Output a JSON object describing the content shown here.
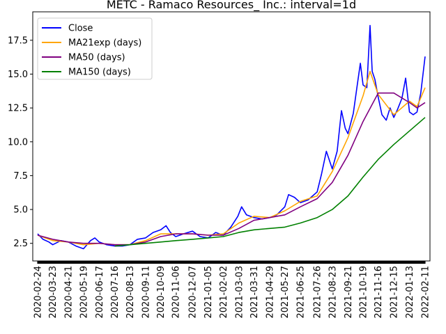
{
  "chart_data": {
    "type": "line",
    "title": "METC - Ramaco Resources_ Inc.: interval=1d",
    "xlabel": "",
    "ylabel": "",
    "ylim": [
      1.2,
      19.6
    ],
    "xlim": [
      "2020-02-15",
      "2022-02-20"
    ],
    "grid": false,
    "legend_position": "top-left",
    "x_tick_labels": [
      "2020-02-24",
      "2020-03-23",
      "2020-04-21",
      "2020-05-19",
      "2020-06-17",
      "2020-07-16",
      "2020-08-13",
      "2020-09-11",
      "2020-10-09",
      "2020-11-06",
      "2020-12-07",
      "2021-01-05",
      "2021-02-02",
      "2021-03-03",
      "2021-03-31",
      "2021-04-29",
      "2021-05-27",
      "2021-06-25",
      "2021-07-26",
      "2021-08-23",
      "2021-09-21",
      "2021-10-19",
      "2021-11-16",
      "2021-12-15",
      "2022-01-13",
      "2022-02-11"
    ],
    "y_ticks": [
      2.5,
      5.0,
      7.5,
      10.0,
      12.5,
      15.0,
      17.5
    ],
    "y_tick_labels": [
      "2.5",
      "5.0",
      "7.5",
      "10.0",
      "12.5",
      "15.0",
      "17.5"
    ],
    "series": [
      {
        "name": "Close",
        "color": "#0000ff",
        "points": [
          [
            "2020-02-24",
            3.2
          ],
          [
            "2020-03-05",
            2.8
          ],
          [
            "2020-03-16",
            2.6
          ],
          [
            "2020-03-23",
            2.4
          ],
          [
            "2020-04-07",
            2.7
          ],
          [
            "2020-04-21",
            2.6
          ],
          [
            "2020-05-05",
            2.3
          ],
          [
            "2020-05-19",
            2.1
          ],
          [
            "2020-06-01",
            2.7
          ],
          [
            "2020-06-09",
            2.9
          ],
          [
            "2020-06-17",
            2.6
          ],
          [
            "2020-07-01",
            2.4
          ],
          [
            "2020-07-16",
            2.3
          ],
          [
            "2020-07-30",
            2.3
          ],
          [
            "2020-08-13",
            2.4
          ],
          [
            "2020-08-27",
            2.8
          ],
          [
            "2020-09-11",
            2.9
          ],
          [
            "2020-09-25",
            3.3
          ],
          [
            "2020-10-09",
            3.5
          ],
          [
            "2020-10-19",
            3.8
          ],
          [
            "2020-10-27",
            3.3
          ],
          [
            "2020-11-06",
            3.0
          ],
          [
            "2020-11-20",
            3.2
          ],
          [
            "2020-12-07",
            3.4
          ],
          [
            "2020-12-21",
            3.0
          ],
          [
            "2021-01-05",
            2.9
          ],
          [
            "2021-01-19",
            3.3
          ],
          [
            "2021-02-02",
            3.1
          ],
          [
            "2021-02-16",
            3.7
          ],
          [
            "2021-03-01",
            4.5
          ],
          [
            "2021-03-08",
            5.2
          ],
          [
            "2021-03-17",
            4.6
          ],
          [
            "2021-03-31",
            4.4
          ],
          [
            "2021-04-15",
            4.3
          ],
          [
            "2021-04-29",
            4.4
          ],
          [
            "2021-05-12",
            4.6
          ],
          [
            "2021-05-27",
            5.2
          ],
          [
            "2021-06-03",
            6.1
          ],
          [
            "2021-06-14",
            5.9
          ],
          [
            "2021-06-25",
            5.5
          ],
          [
            "2021-07-09",
            5.7
          ],
          [
            "2021-07-26",
            6.3
          ],
          [
            "2021-08-03",
            7.6
          ],
          [
            "2021-08-12",
            9.3
          ],
          [
            "2021-08-23",
            8.0
          ],
          [
            "2021-09-01",
            9.3
          ],
          [
            "2021-09-09",
            12.3
          ],
          [
            "2021-09-16",
            11.0
          ],
          [
            "2021-09-21",
            10.6
          ],
          [
            "2021-10-01",
            12.1
          ],
          [
            "2021-10-08",
            14.1
          ],
          [
            "2021-10-14",
            15.8
          ],
          [
            "2021-10-19",
            14.2
          ],
          [
            "2021-10-26",
            14.0
          ],
          [
            "2021-11-01",
            18.6
          ],
          [
            "2021-11-05",
            15.2
          ],
          [
            "2021-11-10",
            14.6
          ],
          [
            "2021-11-16",
            13.3
          ],
          [
            "2021-11-23",
            12.0
          ],
          [
            "2021-12-01",
            11.6
          ],
          [
            "2021-12-08",
            12.5
          ],
          [
            "2021-12-15",
            11.8
          ],
          [
            "2021-12-22",
            12.4
          ],
          [
            "2021-12-30",
            13.2
          ],
          [
            "2022-01-06",
            14.7
          ],
          [
            "2022-01-13",
            12.2
          ],
          [
            "2022-01-20",
            12.0
          ],
          [
            "2022-01-27",
            12.2
          ],
          [
            "2022-02-03",
            13.6
          ],
          [
            "2022-02-08",
            15.3
          ],
          [
            "2022-02-11",
            16.3
          ]
        ]
      },
      {
        "name": "MA21exp (days)",
        "color": "#ffa500",
        "points": [
          [
            "2020-02-24",
            3.1
          ],
          [
            "2020-03-23",
            2.7
          ],
          [
            "2020-04-21",
            2.6
          ],
          [
            "2020-05-19",
            2.4
          ],
          [
            "2020-06-17",
            2.5
          ],
          [
            "2020-07-16",
            2.4
          ],
          [
            "2020-08-13",
            2.4
          ],
          [
            "2020-09-11",
            2.7
          ],
          [
            "2020-10-09",
            3.2
          ],
          [
            "2020-11-06",
            3.2
          ],
          [
            "2020-12-07",
            3.2
          ],
          [
            "2021-01-05",
            3.1
          ],
          [
            "2021-02-02",
            3.2
          ],
          [
            "2021-03-03",
            4.0
          ],
          [
            "2021-03-31",
            4.5
          ],
          [
            "2021-04-29",
            4.4
          ],
          [
            "2021-05-27",
            4.9
          ],
          [
            "2021-06-25",
            5.6
          ],
          [
            "2021-07-26",
            6.0
          ],
          [
            "2021-08-23",
            7.8
          ],
          [
            "2021-09-21",
            10.3
          ],
          [
            "2021-10-19",
            13.4
          ],
          [
            "2021-11-01",
            15.2
          ],
          [
            "2021-11-16",
            13.5
          ],
          [
            "2021-12-15",
            12.0
          ],
          [
            "2022-01-13",
            13.0
          ],
          [
            "2022-01-27",
            12.6
          ],
          [
            "2022-02-11",
            14.0
          ]
        ]
      },
      {
        "name": "MA50 (days)",
        "color": "#800080",
        "points": [
          [
            "2020-02-24",
            3.1
          ],
          [
            "2020-03-23",
            2.8
          ],
          [
            "2020-04-21",
            2.6
          ],
          [
            "2020-05-19",
            2.5
          ],
          [
            "2020-06-17",
            2.5
          ],
          [
            "2020-07-16",
            2.4
          ],
          [
            "2020-08-13",
            2.4
          ],
          [
            "2020-09-11",
            2.6
          ],
          [
            "2020-10-09",
            3.0
          ],
          [
            "2020-11-06",
            3.2
          ],
          [
            "2020-12-07",
            3.2
          ],
          [
            "2021-01-05",
            3.1
          ],
          [
            "2021-02-02",
            3.1
          ],
          [
            "2021-03-03",
            3.6
          ],
          [
            "2021-03-31",
            4.2
          ],
          [
            "2021-04-29",
            4.4
          ],
          [
            "2021-05-27",
            4.6
          ],
          [
            "2021-06-25",
            5.2
          ],
          [
            "2021-07-26",
            5.8
          ],
          [
            "2021-08-23",
            7.0
          ],
          [
            "2021-09-21",
            9.0
          ],
          [
            "2021-10-19",
            11.5
          ],
          [
            "2021-11-16",
            13.6
          ],
          [
            "2021-12-15",
            13.6
          ],
          [
            "2022-01-13",
            12.9
          ],
          [
            "2022-01-27",
            12.5
          ],
          [
            "2022-02-11",
            12.9
          ]
        ]
      },
      {
        "name": "MA150 (days)",
        "color": "#008000",
        "points": [
          [
            "2020-07-16",
            2.3
          ],
          [
            "2020-08-13",
            2.4
          ],
          [
            "2020-09-11",
            2.5
          ],
          [
            "2020-10-09",
            2.6
          ],
          [
            "2020-11-06",
            2.7
          ],
          [
            "2020-12-07",
            2.8
          ],
          [
            "2021-01-05",
            2.9
          ],
          [
            "2021-02-02",
            3.0
          ],
          [
            "2021-03-03",
            3.3
          ],
          [
            "2021-03-31",
            3.5
          ],
          [
            "2021-04-29",
            3.6
          ],
          [
            "2021-05-27",
            3.7
          ],
          [
            "2021-06-25",
            4.0
          ],
          [
            "2021-07-26",
            4.4
          ],
          [
            "2021-08-23",
            5.0
          ],
          [
            "2021-09-21",
            6.0
          ],
          [
            "2021-10-19",
            7.4
          ],
          [
            "2021-11-16",
            8.7
          ],
          [
            "2021-12-15",
            9.8
          ],
          [
            "2022-01-13",
            10.8
          ],
          [
            "2022-02-11",
            11.8
          ]
        ]
      }
    ]
  }
}
